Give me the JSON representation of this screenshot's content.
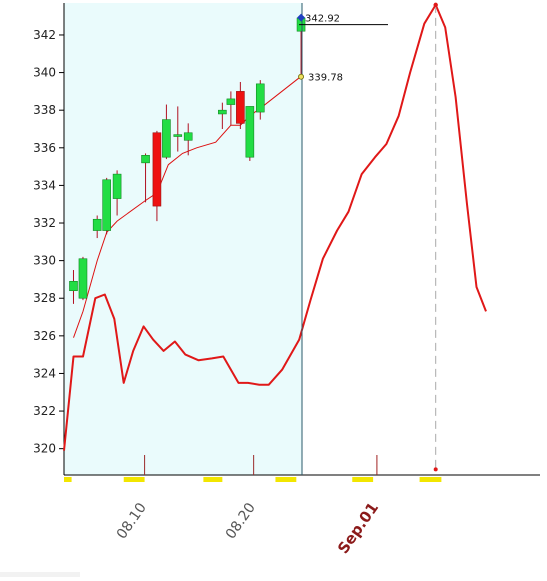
{
  "chart_data": {
    "type": "candlestick",
    "colors": {
      "up": "#22dd44",
      "down": "#ee1111",
      "wick": "#b01020",
      "ma_line": "#dd1111",
      "red_line": "#e01818",
      "history_bg": "#eafbfc",
      "axis": "#000000",
      "tick_highlight": "#f2e600",
      "cursor_line": "#2a5a6a",
      "marker": "#2040c0"
    },
    "y_axis": {
      "min": 318.6,
      "max": 343.7,
      "ticks": [
        "320",
        "322",
        "324",
        "326",
        "328",
        "330",
        "332",
        "334",
        "336",
        "338",
        "340",
        "342"
      ]
    },
    "x_axis": {
      "range": [
        0,
        50.2
      ],
      "labels": [
        {
          "text": "08.10",
          "x": 8.5,
          "style": "normal"
        },
        {
          "text": "08.20",
          "x": 20,
          "style": "normal"
        },
        {
          "text": "Sep.01",
          "x": 33,
          "style": "month"
        }
      ],
      "highlight_spans": [
        [
          0,
          0.8
        ],
        [
          6.3,
          8.5
        ],
        [
          14.7,
          16.7
        ],
        [
          22.3,
          24.5
        ],
        [
          30.4,
          32.6
        ],
        [
          37.5,
          39.8
        ]
      ]
    },
    "candles": [
      {
        "x": 1,
        "open": 328.4,
        "high": 329.5,
        "low": 327.7,
        "close": 328.9
      },
      {
        "x": 2,
        "open": 328.0,
        "high": 330.2,
        "low": 327.9,
        "close": 330.1
      },
      {
        "x": 3.5,
        "open": 331.6,
        "high": 332.4,
        "low": 331.2,
        "close": 332.2
      },
      {
        "x": 4.5,
        "open": 331.6,
        "high": 334.4,
        "low": 331.4,
        "close": 334.3
      },
      {
        "x": 5.6,
        "open": 333.3,
        "high": 334.8,
        "low": 332.4,
        "close": 334.6
      },
      {
        "x": 8.6,
        "open": 335.2,
        "high": 335.7,
        "low": 333.1,
        "close": 335.6
      },
      {
        "x": 9.8,
        "open": 336.8,
        "high": 336.9,
        "low": 332.1,
        "close": 332.9
      },
      {
        "x": 10.8,
        "open": 335.5,
        "high": 338.3,
        "low": 335.4,
        "close": 337.5
      },
      {
        "x": 12.0,
        "open": 336.6,
        "high": 338.2,
        "low": 335.8,
        "close": 336.7
      },
      {
        "x": 13.1,
        "open": 336.4,
        "high": 337.3,
        "low": 335.6,
        "close": 336.8
      },
      {
        "x": 16.7,
        "open": 337.8,
        "high": 338.4,
        "low": 337.0,
        "close": 338.0
      },
      {
        "x": 17.6,
        "open": 338.3,
        "high": 339.0,
        "low": 337.2,
        "close": 338.6
      },
      {
        "x": 18.6,
        "open": 339.0,
        "high": 339.5,
        "low": 337.0,
        "close": 337.3
      },
      {
        "x": 19.6,
        "open": 335.5,
        "high": 338.2,
        "low": 335.3,
        "close": 338.2
      },
      {
        "x": 20.7,
        "open": 337.9,
        "high": 339.6,
        "low": 337.5,
        "close": 339.4
      },
      {
        "x": 25.0,
        "open": 342.2,
        "high": 342.9,
        "low": 339.8,
        "close": 342.9
      }
    ],
    "moving_average": {
      "points": [
        [
          1,
          325.9
        ],
        [
          2,
          327.3
        ],
        [
          3.5,
          330.0
        ],
        [
          4.5,
          331.5
        ],
        [
          5.6,
          332.1
        ],
        [
          8.6,
          333.2
        ],
        [
          9.8,
          333.6
        ],
        [
          11,
          335.1
        ],
        [
          12.5,
          335.7
        ],
        [
          14,
          336.0
        ],
        [
          16,
          336.3
        ],
        [
          17.6,
          337.2
        ],
        [
          18.6,
          337.2
        ],
        [
          19.6,
          337.7
        ],
        [
          20.7,
          338.1
        ],
        [
          25.0,
          339.8
        ]
      ]
    },
    "red_line": {
      "points": [
        [
          0,
          319.9
        ],
        [
          1,
          324.9
        ],
        [
          2,
          324.9
        ],
        [
          3.3,
          328.0
        ],
        [
          4.3,
          328.2
        ],
        [
          5.3,
          326.9
        ],
        [
          6.3,
          323.5
        ],
        [
          7.3,
          325.2
        ],
        [
          8.4,
          326.5
        ],
        [
          9.4,
          325.8
        ],
        [
          10.5,
          325.2
        ],
        [
          11.7,
          325.7
        ],
        [
          12.8,
          325.0
        ],
        [
          14.2,
          324.7
        ],
        [
          15.6,
          324.8
        ],
        [
          16.8,
          324.9
        ],
        [
          18.4,
          323.5
        ],
        [
          19.4,
          323.5
        ],
        [
          20.6,
          323.4
        ],
        [
          21.6,
          323.4
        ],
        [
          23.0,
          324.2
        ],
        [
          24.8,
          325.8
        ],
        [
          26.0,
          327.9
        ],
        [
          27.3,
          330.1
        ],
        [
          28.8,
          331.6
        ],
        [
          30.0,
          332.6
        ],
        [
          31.4,
          334.6
        ],
        [
          32.8,
          335.5
        ],
        [
          34.0,
          336.2
        ],
        [
          35.3,
          337.7
        ],
        [
          36.5,
          340.0
        ],
        [
          38.0,
          342.6
        ],
        [
          39.2,
          343.6
        ],
        [
          40.2,
          342.4
        ],
        [
          41.3,
          338.7
        ],
        [
          42.5,
          333.0
        ],
        [
          43.5,
          328.6
        ],
        [
          44.5,
          327.3
        ]
      ]
    },
    "cursor_x": 25.1,
    "peak_x": 39.2,
    "peak_bottom_y": 318.9,
    "callouts": [
      {
        "text": "342.92",
        "value": 342.92,
        "x": 25.0
      },
      {
        "text": "339.78",
        "value": 339.78,
        "x": 25.0
      }
    ]
  }
}
